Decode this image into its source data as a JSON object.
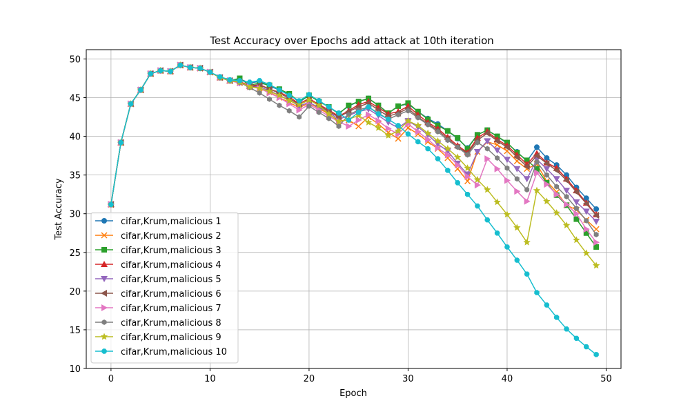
{
  "chart_data": {
    "type": "line",
    "title": "Test Accuracy over Epochs add attack at 10th iteration",
    "xlabel": "Epoch",
    "ylabel": "Test Accuracy",
    "xlim": [
      -2.5,
      51.5
    ],
    "ylim": [
      10,
      51.2
    ],
    "xticks": [
      0,
      10,
      20,
      30,
      40,
      50
    ],
    "yticks": [
      10,
      15,
      20,
      25,
      30,
      35,
      40,
      45,
      50
    ],
    "grid": true,
    "legend_position": "lower-left",
    "x": [
      0,
      1,
      2,
      3,
      4,
      5,
      6,
      7,
      8,
      9,
      10,
      11,
      12,
      13,
      14,
      15,
      16,
      17,
      18,
      19,
      20,
      21,
      22,
      23,
      24,
      25,
      26,
      27,
      28,
      29,
      30,
      31,
      32,
      33,
      34,
      35,
      36,
      37,
      38,
      39,
      40,
      41,
      42,
      43,
      44,
      45,
      46,
      47,
      48,
      49
    ],
    "series": [
      {
        "name": "cifar,Krum,malicious 1",
        "color": "#1f77b4",
        "marker": "circle",
        "values": [
          31.2,
          39.2,
          44.2,
          46.0,
          48.1,
          48.5,
          48.4,
          49.2,
          48.9,
          48.8,
          48.3,
          47.6,
          47.2,
          47.4,
          46.9,
          47.1,
          46.5,
          46.0,
          45.5,
          44.4,
          45.3,
          44.6,
          43.8,
          43.0,
          43.9,
          44.5,
          44.9,
          44.0,
          43.0,
          43.9,
          44.2,
          43.2,
          42.3,
          41.6,
          40.7,
          39.7,
          38.5,
          40.2,
          40.8,
          40.0,
          39.1,
          38.0,
          36.8,
          38.6,
          37.2,
          36.3,
          35.0,
          33.4,
          32.0,
          30.6
        ]
      },
      {
        "name": "cifar,Krum,malicious 2",
        "color": "#ff7f0e",
        "marker": "x",
        "values": [
          31.2,
          39.2,
          44.2,
          46.0,
          48.1,
          48.5,
          48.4,
          49.2,
          48.9,
          48.8,
          48.3,
          47.6,
          47.2,
          46.9,
          46.6,
          46.2,
          45.7,
          45.0,
          44.4,
          43.7,
          44.3,
          43.6,
          42.9,
          42.0,
          42.1,
          41.3,
          42.5,
          41.6,
          40.5,
          39.7,
          41.1,
          40.3,
          39.3,
          38.4,
          37.2,
          35.8,
          34.2,
          38.0,
          39.3,
          38.9,
          38.1,
          36.8,
          35.8,
          36.4,
          34.2,
          32.8,
          31.1,
          30.5,
          29.2,
          28.0
        ]
      },
      {
        "name": "cifar,Krum,malicious 3",
        "color": "#2ca02c",
        "marker": "square",
        "values": [
          31.2,
          39.2,
          44.2,
          46.0,
          48.1,
          48.5,
          48.4,
          49.2,
          48.9,
          48.8,
          48.3,
          47.6,
          47.2,
          47.5,
          46.6,
          46.9,
          46.6,
          46.1,
          45.5,
          44.5,
          45.3,
          44.5,
          43.8,
          42.9,
          44.0,
          44.5,
          44.9,
          44.0,
          43.0,
          43.9,
          44.3,
          43.2,
          42.2,
          41.4,
          40.7,
          39.8,
          38.4,
          40.2,
          40.8,
          40.0,
          39.2,
          37.9,
          36.9,
          35.8,
          34.0,
          32.4,
          31.1,
          29.3,
          27.5,
          25.7
        ]
      },
      {
        "name": "cifar,Krum,malicious 4",
        "color": "#d62728",
        "marker": "triangle-up",
        "values": [
          31.2,
          39.2,
          44.2,
          46.0,
          48.1,
          48.5,
          48.4,
          49.2,
          48.9,
          48.8,
          48.3,
          47.6,
          47.2,
          47.1,
          46.5,
          46.7,
          46.1,
          45.7,
          45.1,
          44.2,
          44.9,
          44.1,
          43.4,
          42.6,
          43.3,
          44.1,
          44.5,
          43.7,
          42.9,
          43.2,
          43.9,
          42.8,
          41.8,
          41.0,
          39.9,
          38.8,
          37.9,
          39.8,
          40.6,
          39.6,
          38.8,
          37.6,
          36.4,
          37.8,
          36.6,
          35.9,
          34.5,
          33.0,
          31.4,
          29.9
        ]
      },
      {
        "name": "cifar,Krum,malicious 5",
        "color": "#9467bd",
        "marker": "triangle-down",
        "values": [
          31.2,
          39.2,
          44.2,
          46.0,
          48.1,
          48.5,
          48.4,
          49.2,
          48.9,
          48.8,
          48.3,
          47.6,
          47.2,
          46.9,
          46.5,
          46.4,
          45.9,
          45.3,
          44.7,
          43.9,
          44.4,
          43.7,
          43.1,
          42.2,
          42.7,
          43.2,
          43.5,
          42.7,
          41.8,
          41.1,
          42.0,
          41.2,
          40.2,
          39.0,
          38.1,
          36.5,
          35.1,
          38.0,
          39.4,
          38.2,
          37.0,
          35.8,
          34.5,
          37.0,
          35.8,
          34.5,
          33.0,
          31.5,
          30.3,
          29.0
        ]
      },
      {
        "name": "cifar,Krum,malicious 6",
        "color": "#8c564b",
        "marker": "triangle-left",
        "values": [
          31.2,
          39.2,
          44.2,
          46.0,
          48.1,
          48.5,
          48.4,
          49.2,
          48.9,
          48.8,
          48.3,
          47.6,
          47.2,
          47.0,
          46.4,
          46.6,
          46.1,
          45.6,
          44.9,
          44.1,
          44.7,
          44.0,
          43.2,
          42.5,
          43.2,
          43.8,
          44.3,
          43.4,
          42.6,
          43.0,
          43.6,
          42.5,
          41.6,
          40.8,
          39.7,
          38.6,
          37.8,
          39.5,
          40.4,
          39.4,
          38.6,
          37.3,
          36.1,
          37.5,
          36.5,
          35.6,
          34.3,
          32.8,
          31.3,
          29.8
        ]
      },
      {
        "name": "cifar,Krum,malicious 7",
        "color": "#e377c2",
        "marker": "triangle-right",
        "values": [
          31.2,
          39.2,
          44.2,
          46.0,
          48.1,
          48.5,
          48.4,
          49.2,
          48.9,
          48.8,
          48.3,
          47.6,
          47.2,
          46.9,
          46.4,
          46.2,
          45.6,
          45.0,
          44.2,
          43.4,
          44.1,
          43.4,
          42.6,
          41.9,
          41.3,
          42.1,
          42.8,
          42.0,
          41.0,
          40.3,
          41.6,
          40.6,
          39.6,
          38.5,
          37.6,
          36.3,
          34.8,
          33.7,
          37.1,
          35.8,
          34.3,
          32.9,
          31.6,
          35.3,
          33.8,
          32.5,
          31.2,
          30.0,
          28.0,
          26.3
        ]
      },
      {
        "name": "cifar,Krum,malicious 8",
        "color": "#7f7f7f",
        "marker": "hexagon",
        "values": [
          31.2,
          39.2,
          44.2,
          46.0,
          48.1,
          48.5,
          48.4,
          49.2,
          48.9,
          48.8,
          48.3,
          47.6,
          47.2,
          47.0,
          46.3,
          45.6,
          44.8,
          44.0,
          43.3,
          42.5,
          43.9,
          43.1,
          42.3,
          41.3,
          42.8,
          43.4,
          43.8,
          43.0,
          42.2,
          42.8,
          43.3,
          42.4,
          41.5,
          40.6,
          39.5,
          38.6,
          37.6,
          39.2,
          38.4,
          37.2,
          35.9,
          34.5,
          33.1,
          36.7,
          35.0,
          33.5,
          32.2,
          30.7,
          29.1,
          27.3
        ]
      },
      {
        "name": "cifar,Krum,malicious 9",
        "color": "#bcbd22",
        "marker": "star",
        "values": [
          31.2,
          39.2,
          44.2,
          46.0,
          48.1,
          48.5,
          48.4,
          49.2,
          48.9,
          48.8,
          48.3,
          47.6,
          47.2,
          47.0,
          46.4,
          46.2,
          45.8,
          45.3,
          44.6,
          44.1,
          44.7,
          44.0,
          42.9,
          41.9,
          42.2,
          42.7,
          41.8,
          41.1,
          40.1,
          40.7,
          42.0,
          41.4,
          40.4,
          39.4,
          38.4,
          37.3,
          35.9,
          34.4,
          33.1,
          31.5,
          29.9,
          28.2,
          26.3,
          33.0,
          31.6,
          30.1,
          28.5,
          26.6,
          24.9,
          23.3
        ]
      },
      {
        "name": "cifar,Krum,malicious 10",
        "color": "#17becf",
        "marker": "octagon",
        "values": [
          31.2,
          39.2,
          44.2,
          46.0,
          48.1,
          48.5,
          48.4,
          49.2,
          48.9,
          48.8,
          48.3,
          47.7,
          47.3,
          47.2,
          47.0,
          47.2,
          46.7,
          46.0,
          45.3,
          44.6,
          45.4,
          44.6,
          43.8,
          43.0,
          42.1,
          43.1,
          43.8,
          42.9,
          42.2,
          41.4,
          40.3,
          39.3,
          38.4,
          37.1,
          35.6,
          34.0,
          32.5,
          31.0,
          29.2,
          27.5,
          25.7,
          24.0,
          22.2,
          19.8,
          18.2,
          16.6,
          15.1,
          13.9,
          12.8,
          11.8
        ]
      }
    ]
  }
}
